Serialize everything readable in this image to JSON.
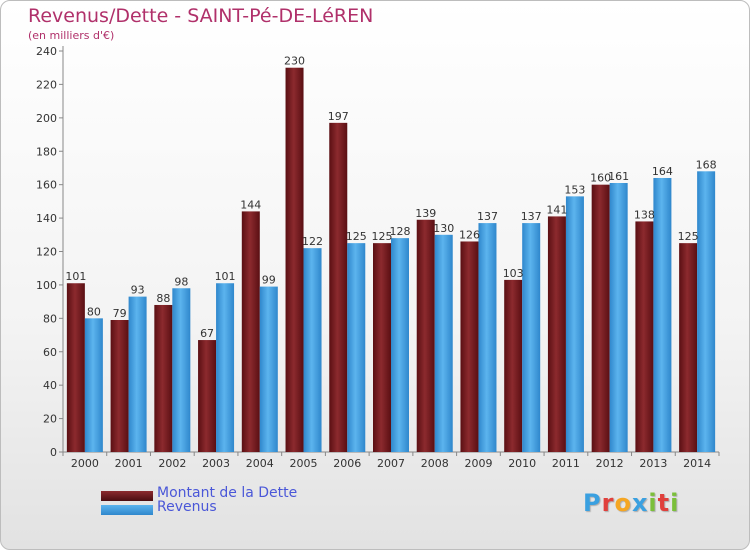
{
  "title": "Revenus/Dette - SAINT-Pé-DE-LéREN",
  "subtitle": "(en milliers d'€)",
  "logo": {
    "letters": [
      "P",
      "r",
      "o",
      "x",
      "i",
      "t",
      "i"
    ],
    "colors": [
      "#3aa0e0",
      "#e0403c",
      "#f5a623",
      "#3aa0e0",
      "#7bbf3a",
      "#e0403c",
      "#7bbf3a"
    ]
  },
  "colors": {
    "dette": "#7a1e22",
    "revenus": "#3a9be0"
  },
  "chart_data": {
    "type": "bar",
    "title": "Revenus/Dette - SAINT-Pé-DE-LéREN",
    "ylabel": "(en milliers d'€)",
    "categories": [
      "2000",
      "2001",
      "2002",
      "2003",
      "2004",
      "2005",
      "2006",
      "2007",
      "2008",
      "2009",
      "2010",
      "2011",
      "2012",
      "2013",
      "2014"
    ],
    "series": [
      {
        "name": "Montant de la Dette",
        "values": [
          101,
          79,
          88,
          67,
          144,
          230,
          197,
          125,
          139,
          126,
          103,
          141,
          160,
          138,
          125
        ]
      },
      {
        "name": "Revenus",
        "values": [
          80,
          93,
          98,
          101,
          99,
          122,
          125,
          128,
          130,
          137,
          137,
          153,
          161,
          164,
          168
        ]
      }
    ],
    "ylim": [
      0,
      240
    ],
    "yticks": [
      0,
      20,
      40,
      60,
      80,
      100,
      120,
      140,
      160,
      180,
      200,
      220,
      240
    ],
    "grid": false,
    "legend": "bottom-left"
  }
}
